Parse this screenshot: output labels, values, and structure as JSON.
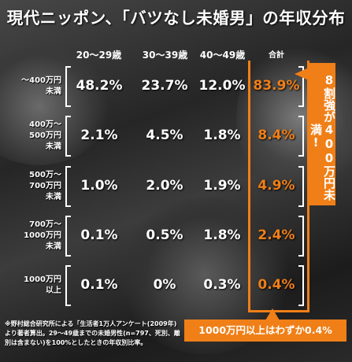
{
  "title": "現代ニッポン、「バツなし未婚男」の年収分布",
  "columns": [
    "20～29歳",
    "30～39歳",
    "40～49歳",
    "合計"
  ],
  "rows": [
    {
      "label": "～400万円\n未満",
      "values": [
        "48.2%",
        "23.7%",
        "12.0%"
      ],
      "total": "83.9%"
    },
    {
      "label": "400万～\n500万円\n未満",
      "values": [
        "2.1%",
        "4.5%",
        "1.8%"
      ],
      "total": "8.4%"
    },
    {
      "label": "500万～\n700万円\n未満",
      "values": [
        "1.0%",
        "2.0%",
        "1.9%"
      ],
      "total": "4.9%"
    },
    {
      "label": "700万～\n1000万円\n未満",
      "values": [
        "0.1%",
        "0.5%",
        "1.8%"
      ],
      "total": "2.4%"
    },
    {
      "label": "1000万円\n以上",
      "values": [
        "0.1%",
        "0%",
        "0.3%"
      ],
      "total": "0.4%"
    }
  ],
  "callout_right": "8割強が400万円未満!",
  "callout_bottom": "1000万円以上はわずか0.4%",
  "footnote": "※野村総合研究所による「生活者1万人アンケート(2009年)より著者算出。29～49歳までの未婚男性(n=797、死別、離別は含まない)を100%としたときの年収別比率。",
  "colors": {
    "accent": "#f07f17",
    "text": "#ffffff",
    "background": "#2b2b2b"
  },
  "chart_data": {
    "type": "table",
    "title": "現代ニッポン、「バツなし未婚男」の年収分布",
    "columns": [
      "20～29歳",
      "30～39歳",
      "40～49歳",
      "合計"
    ],
    "row_labels": [
      "～400万円未満",
      "400万～500万円未満",
      "500万～700万円未満",
      "700万～1000万円未満",
      "1000万円以上"
    ],
    "values": [
      [
        48.2,
        23.7,
        12.0,
        83.9
      ],
      [
        2.1,
        4.5,
        1.8,
        8.4
      ],
      [
        1.0,
        2.0,
        1.9,
        4.9
      ],
      [
        0.1,
        0.5,
        1.8,
        2.4
      ],
      [
        0.1,
        0,
        0.3,
        0.4
      ]
    ],
    "unit": "%"
  }
}
